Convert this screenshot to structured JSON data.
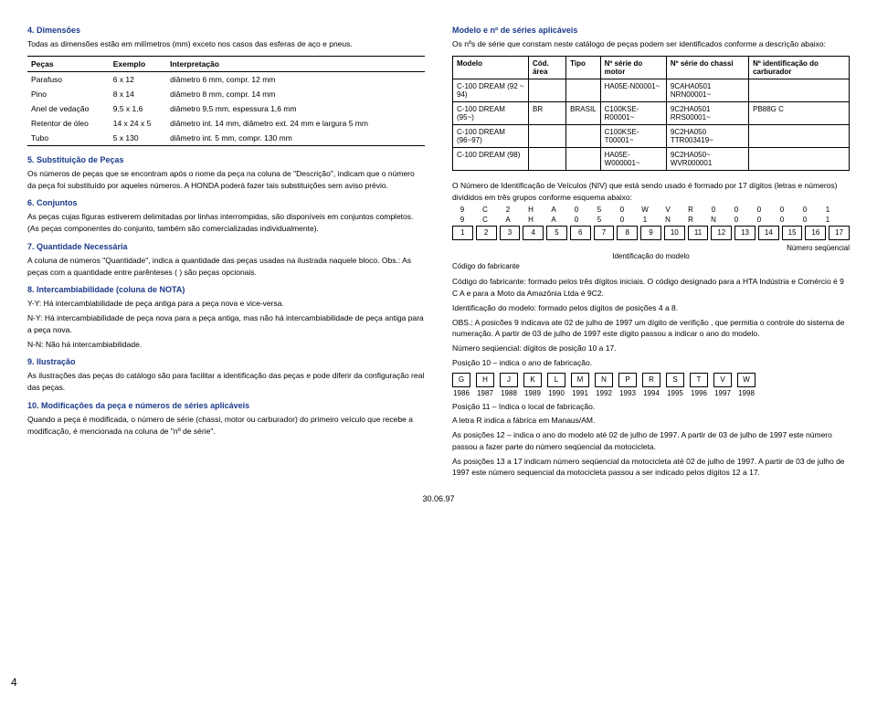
{
  "left": {
    "s4_title": "4. Dimensões",
    "s4_text": "Todas as dimensões estão em milímetros (mm) exceto nos casos das esferas de aço e pneus.",
    "dim_table": {
      "headers": [
        "Peças",
        "Exemplo",
        "Interpretação"
      ],
      "rows": [
        [
          "Parafuso",
          "6 x 12",
          "diâmetro 6 mm, compr. 12 mm"
        ],
        [
          "Pino",
          "8 x 14",
          "diâmetro 8 mm, compr. 14 mm"
        ],
        [
          "Anel de vedação",
          "9,5 x 1,6",
          "diâmetro 9,5 mm, espessura 1,6 mm"
        ],
        [
          "Retentor de óleo",
          "14 x 24 x 5",
          "diâmetro int. 14 mm, diâmetro ext. 24 mm e largura 5 mm"
        ],
        [
          "Tubo",
          "5 x 130",
          "diâmetro int. 5 mm, compr. 130 mm"
        ]
      ]
    },
    "s5_title": "5. Substituição de Peças",
    "s5_text": "Os números de peças que se encontram após o nome da peça na coluna de \"Descrição\", indicam que o número da peça foi substituído por aqueles números. A HONDA poderá fazer tais substituições sem aviso prévio.",
    "s6_title": "6. Conjuntos",
    "s6_text": "As peças cujas figuras estiverem delimitadas por linhas interrompidas, são disponíveis em conjuntos completos. (As peças componentes do conjunto, também são comercializadas individualmente).",
    "s7_title": "7. Quantidade Necessária",
    "s7_text": "A coluna de números \"Quantidade\", indica a quantidade das peças usadas na ilustrada naquele bloco. Obs.: As peças com a quantidade entre parênteses ( ) são peças opcionais.",
    "s8_title": "8. Intercambiabilidade (coluna de NOTA)",
    "s8_a": "Y-Y:  Há intercambiabilidade de peça antiga para a peça nova e vice-versa.",
    "s8_b": "N-Y: Há intercambiabilidade de peça nova para a peça antiga, mas não há intercambiabilidade de peça antiga para a peça nova.",
    "s8_c": "N-N: Não há intercambiabilidade.",
    "s9_title": "9. Ilustração",
    "s9_text": "As ilustrações das peças do catálogo são para facilitar a identificação das peças e pode diferir da configuração real das peças.",
    "s10_title": "10. Modificações da peça e números de séries aplicáveis",
    "s10_text": "Quando a peça é modificada, o número de série (chassi, motor ou carburador) do primeiro veículo que recebe a modificação, é mencionada na coluna de \"nº de série\"."
  },
  "right": {
    "hdr_title": "Modelo e nº de séries aplicáveis",
    "hdr_text": "Os nºs de série que constam neste catálogo de peças podem ser identificados conforme a descrição abaixo:",
    "model_headers": [
      "Modelo",
      "Cód. área",
      "Tipo",
      "Nº série do motor",
      "Nº série do chassi",
      "Nº identificação do carburador"
    ],
    "model_rows": [
      [
        "C-100 DREAM (92 ~ 94)",
        "",
        "",
        "HA05E-N00001~",
        "9CAHA0501 NRN00001~",
        ""
      ],
      [
        "C-100 DREAM (95~)",
        "BR",
        "BRASIL",
        "C100KSE-R00001~",
        "9C2HA0501 RRS00001~",
        "PB88G C"
      ],
      [
        "C-100 DREAM (96~97)",
        "",
        "",
        "C100KSE-T00001~",
        "9C2HA050 TTR003419~",
        ""
      ],
      [
        "C-100 DREAM (98)",
        "",
        "",
        "HA05E-W000001~",
        "9C2HA050~ WVR000001",
        ""
      ]
    ],
    "niv_text": "O Número de Identificação de Veículos (NIV) que está sendo usado é formado por 17 dígitos (letras e números) divididos em três grupos conforme esquema abaixo:",
    "code_r1": [
      "9",
      "C",
      "2",
      "H",
      "A",
      "0",
      "5",
      "0",
      "W",
      "V",
      "R",
      "0",
      "0",
      "0",
      "0",
      "0",
      "1"
    ],
    "code_r2": [
      "9",
      "C",
      "A",
      "H",
      "A",
      "0",
      "5",
      "0",
      "1",
      "N",
      "R",
      "N",
      "0",
      "0",
      "0",
      "0",
      "1"
    ],
    "code_r3": [
      "1",
      "2",
      "3",
      "4",
      "5",
      "6",
      "7",
      "8",
      "9",
      "10",
      "11",
      "12",
      "13",
      "14",
      "15",
      "16",
      "17"
    ],
    "label_seq": "Número seqüencial",
    "label_ident": "Identificação do modelo",
    "label_codfab": "Código  do fabricante",
    "p_codfab": "Código do fabricante: formado pelos três dígitos iniciais. O código designado para a HTA Indústria e Comércio é  9  C  A e para a Moto da Amazônia Ltda é 9C2.",
    "p_identmod": "Identificação do modelo: formado pelos dígitos de posições 4 a 8.",
    "p_obs": "OBS.: A posicões 9 indicava ate 02 de julho de 1997 um dígito de verifição , que permitia o controle do sistema de numeração. A partir de 03 de julho de 1997 este dígito passou a indicar o ano do modelo.",
    "p_seq": "Número seqüencial: dígitos de posição 10 a 17.",
    "p_pos10": "Posição 10 – indica o ano de fabricação.",
    "year_letters": [
      "G",
      "H",
      "J",
      "K",
      "L",
      "M",
      "N",
      "P",
      "R",
      "S",
      "T",
      "V",
      "W"
    ],
    "year_years": [
      "1986",
      "1987",
      "1988",
      "1989",
      "1990",
      "1991",
      "1992",
      "1993",
      "1994",
      "1995",
      "1996",
      "1997",
      "1998"
    ],
    "p_pos11a": "Posição 11 – Indica o local de fabricação.",
    "p_pos11b": "A letra R indica a fábrica em Manaus/AM.",
    "p_pos12": "As posições 12 – indica o ano do modelo até 02 de julho de 1997. A partir de 03 de julho de 1997 este número passou a fazer parte do número seqüencial da motocicleta.",
    "p_pos13": "As posições 13 a 17 indicam número seqüencial da motocicleta até 02 de julho de 1997. A partir de 03 de julho de 1997 este número sequencial da motocicleta passou a ser indicado pelos dígitos 12 a 17."
  },
  "footer": {
    "page_num": "4",
    "date": "30.06.97"
  }
}
